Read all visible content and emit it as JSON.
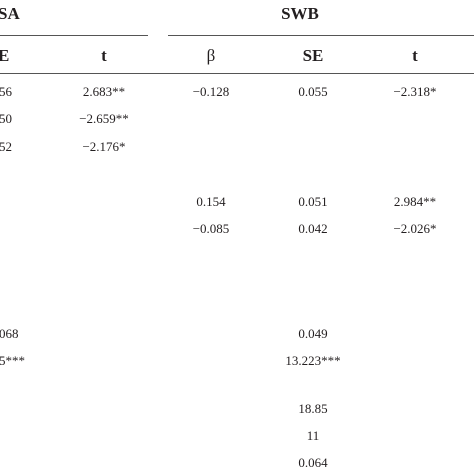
{
  "table": {
    "group_headers": {
      "left": "SA",
      "right": "SWB"
    },
    "left_columns": {
      "se": "E",
      "t": "t"
    },
    "right_columns": {
      "beta": "β",
      "se": "SE",
      "t": "t"
    },
    "rows": [
      {
        "left_se": "56",
        "left_t": "2.683**",
        "beta": "−0.128",
        "se": "0.055",
        "t": "−2.318*"
      },
      {
        "left_se": "50",
        "left_t": "−2.659**",
        "beta": "",
        "se": "",
        "t": ""
      },
      {
        "left_se": "52",
        "left_t": "−2.176*",
        "beta": "",
        "se": "",
        "t": ""
      },
      {
        "left_se": "",
        "left_t": "",
        "beta": "0.154",
        "se": "0.051",
        "t": "2.984**"
      },
      {
        "left_se": "",
        "left_t": "",
        "beta": "−0.085",
        "se": "0.042",
        "t": "−2.026*"
      },
      {
        "left_se": "068",
        "left_t": "",
        "beta": "",
        "se": "0.049",
        "t": ""
      },
      {
        "left_se": "5***",
        "left_t": "",
        "beta": "",
        "se": "13.223***",
        "t": ""
      },
      {
        "left_se": "",
        "left_t": "",
        "beta": "",
        "se": "18.85",
        "t": ""
      },
      {
        "left_se": "",
        "left_t": "",
        "beta": "",
        "se": "11",
        "t": ""
      },
      {
        "left_se": "",
        "left_t": "",
        "beta": "",
        "se": "0.064",
        "t": ""
      }
    ]
  }
}
